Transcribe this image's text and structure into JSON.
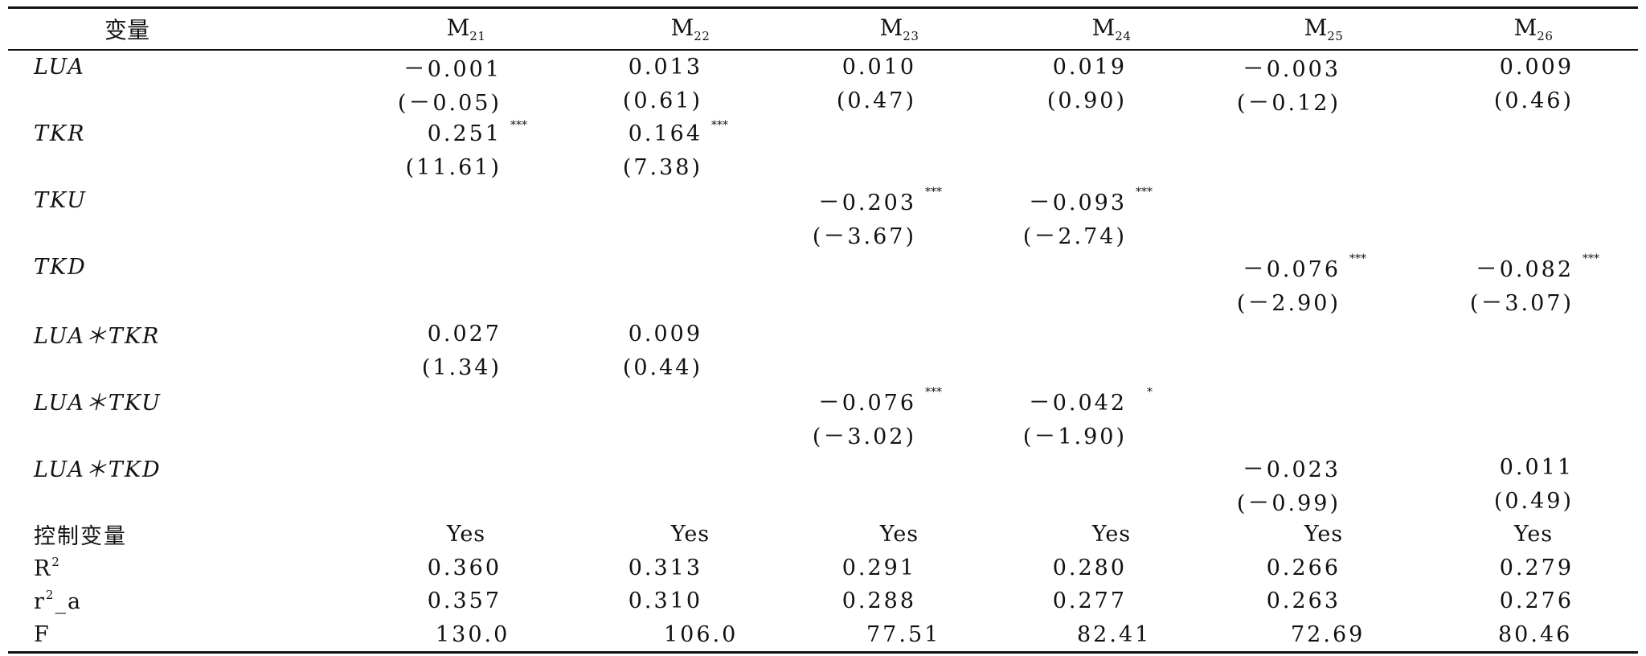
{
  "header": {
    "var_col": "变量",
    "models": [
      {
        "base": "M",
        "sub": "21"
      },
      {
        "base": "M",
        "sub": "22"
      },
      {
        "base": "M",
        "sub": "23"
      },
      {
        "base": "M",
        "sub": "24"
      },
      {
        "base": "M",
        "sub": "25"
      },
      {
        "base": "M",
        "sub": "26"
      }
    ]
  },
  "rows": {
    "lua": {
      "label": "LUA",
      "coef": [
        "－0.001",
        "0.013",
        "0.010",
        "0.019",
        "－0.003",
        "0.009"
      ],
      "stars": [
        "",
        "",
        "",
        "",
        "",
        ""
      ],
      "t": [
        "(－0.05)",
        "(0.61)",
        "(0.47)",
        "(0.90)",
        "(－0.12)",
        "(0.46)"
      ]
    },
    "tkr": {
      "label": "TKR",
      "coef": [
        "0.251",
        "0.164",
        "",
        "",
        "",
        ""
      ],
      "stars": [
        "***",
        "***",
        "",
        "",
        "",
        ""
      ],
      "t": [
        "(11.61)",
        "(7.38)",
        "",
        "",
        "",
        ""
      ]
    },
    "tku": {
      "label": "TKU",
      "coef": [
        "",
        "",
        "－0.203",
        "－0.093",
        "",
        ""
      ],
      "stars": [
        "",
        "",
        "***",
        "***",
        "",
        ""
      ],
      "t": [
        "",
        "",
        "(－3.67)",
        "(－2.74)",
        "",
        ""
      ]
    },
    "tkd": {
      "label": "TKD",
      "coef": [
        "",
        "",
        "",
        "",
        "－0.076",
        "－0.082"
      ],
      "stars": [
        "",
        "",
        "",
        "",
        "***",
        "***"
      ],
      "t": [
        "",
        "",
        "",
        "",
        "(－2.90)",
        "(－3.07)"
      ]
    },
    "lua_tkr": {
      "label": "LUA＊TKR",
      "coef": [
        "0.027",
        "0.009",
        "",
        "",
        "",
        ""
      ],
      "stars": [
        "",
        "",
        "",
        "",
        "",
        ""
      ],
      "t": [
        "(1.34)",
        "(0.44)",
        "",
        "",
        "",
        ""
      ]
    },
    "lua_tku": {
      "label": "LUA＊TKU",
      "coef": [
        "",
        "",
        "－0.076",
        "－0.042",
        "",
        ""
      ],
      "stars": [
        "",
        "",
        "***",
        "*",
        "",
        ""
      ],
      "t": [
        "",
        "",
        "(－3.02)",
        "(－1.90)",
        "",
        ""
      ]
    },
    "lua_tkd": {
      "label": "LUA＊TKD",
      "coef": [
        "",
        "",
        "",
        "",
        "－0.023",
        "0.011"
      ],
      "stars": [
        "",
        "",
        "",
        "",
        "",
        ""
      ],
      "t": [
        "",
        "",
        "",
        "",
        "(－0.99)",
        "(0.49)"
      ]
    }
  },
  "controls": {
    "label": "控制变量",
    "values": [
      "Yes",
      "Yes",
      "Yes",
      "Yes",
      "Yes",
      "Yes"
    ]
  },
  "r2": {
    "label": "R",
    "sup": "2",
    "values": [
      "0.360",
      "0.313",
      "0.291",
      "0.280",
      "0.266",
      "0.279"
    ]
  },
  "r2a": {
    "label_pre": "r",
    "sup": "2",
    "label_post": "_a",
    "values": [
      "0.357",
      "0.310",
      "0.288",
      "0.277",
      "0.263",
      "0.276"
    ]
  },
  "f": {
    "label": "F",
    "values": [
      "130.0",
      "106.0",
      "77.51",
      "82.41",
      "72.69",
      "80.46"
    ]
  }
}
